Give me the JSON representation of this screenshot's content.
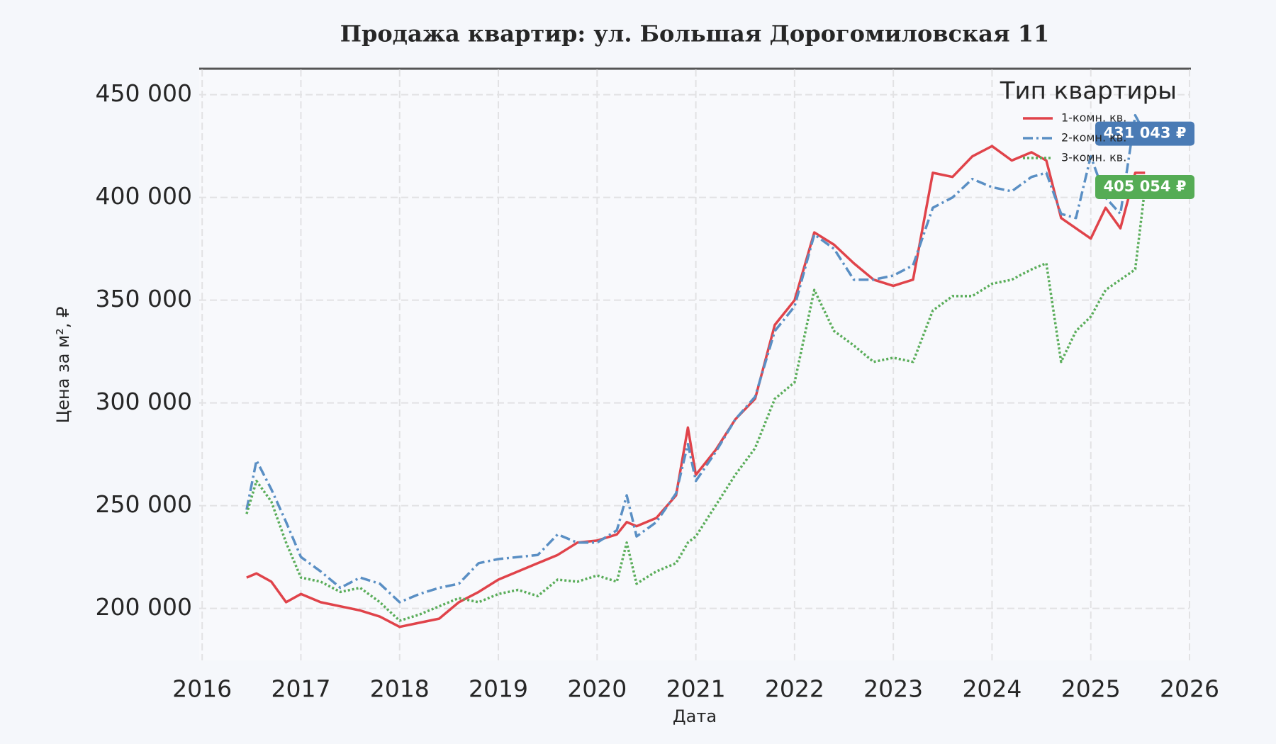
{
  "chart_data": {
    "type": "line",
    "title": "Продажа квартир: ул. Большая Дорогомиловская 11",
    "x_label": "Дата",
    "y_label": "Цена за м², ₽",
    "legend_title": "Тип квартиры",
    "legend": "upper right",
    "grid": true,
    "x": [
      2016.45,
      2016.55,
      2016.7,
      2016.85,
      2017.0,
      2017.2,
      2017.4,
      2017.6,
      2017.8,
      2018.0,
      2018.2,
      2018.4,
      2018.6,
      2018.8,
      2019.0,
      2019.2,
      2019.4,
      2019.6,
      2019.8,
      2020.0,
      2020.2,
      2020.3,
      2020.4,
      2020.6,
      2020.8,
      2020.92,
      2021.0,
      2021.2,
      2021.4,
      2021.6,
      2021.8,
      2022.0,
      2022.2,
      2022.4,
      2022.6,
      2022.8,
      2023.0,
      2023.2,
      2023.4,
      2023.6,
      2023.8,
      2024.0,
      2024.2,
      2024.4,
      2024.55,
      2024.7,
      2024.85,
      2025.0,
      2025.15,
      2025.3,
      2025.45,
      2025.55
    ],
    "series": [
      {
        "name": "1-комн. кв.",
        "color": "#e0434a",
        "dash": "solid",
        "values": [
          215000,
          217000,
          213000,
          203000,
          207000,
          203000,
          201000,
          199000,
          196000,
          191000,
          193000,
          195000,
          203000,
          208000,
          214000,
          218000,
          222000,
          226000,
          232000,
          233000,
          236000,
          242000,
          240000,
          244000,
          255000,
          288000,
          265000,
          277000,
          292000,
          302000,
          338000,
          350000,
          383000,
          377000,
          368000,
          360000,
          357000,
          360000,
          412000,
          410000,
          420000,
          425000,
          418000,
          422000,
          418000,
          390000,
          385000,
          380000,
          395000,
          385000,
          412000,
          412000
        ]
      },
      {
        "name": "2-комн. кв.",
        "color": "#5a8fc4",
        "dash": "dashdot",
        "values": [
          248000,
          272000,
          258000,
          242000,
          225000,
          218000,
          210000,
          215000,
          212000,
          203000,
          207000,
          210000,
          212000,
          222000,
          224000,
          225000,
          226000,
          236000,
          232000,
          232000,
          238000,
          255000,
          235000,
          242000,
          256000,
          280000,
          262000,
          276000,
          292000,
          303000,
          335000,
          347000,
          382000,
          375000,
          360000,
          360000,
          362000,
          367000,
          395000,
          400000,
          409000,
          405000,
          403000,
          410000,
          412000,
          392000,
          390000,
          420000,
          400000,
          392000,
          440000,
          431043
        ]
      },
      {
        "name": "3-комн. кв.",
        "color": "#5aad5a",
        "dash": "dotted",
        "values": [
          246000,
          262000,
          252000,
          232000,
          215000,
          213000,
          208000,
          210000,
          203000,
          194000,
          197000,
          201000,
          205000,
          203000,
          207000,
          209000,
          206000,
          214000,
          213000,
          216000,
          213000,
          232000,
          212000,
          218000,
          222000,
          232000,
          235000,
          250000,
          265000,
          278000,
          302000,
          310000,
          355000,
          335000,
          328000,
          320000,
          322000,
          320000,
          345000,
          352000,
          352000,
          358000,
          360000,
          365000,
          368000,
          320000,
          335000,
          342000,
          355000,
          360000,
          365000,
          405054
        ]
      }
    ],
    "annotations": [
      {
        "text": "431 043 ₽",
        "value": 431043,
        "color": "#4a7bb5"
      },
      {
        "text": "405 054 ₽",
        "value": 405054,
        "color": "#55ac55"
      }
    ],
    "xlim": [
      2015.97,
      2026.0
    ],
    "xticks": [
      2016,
      2017,
      2018,
      2019,
      2020,
      2021,
      2022,
      2023,
      2024,
      2025,
      2026
    ],
    "ylim": [
      174700,
      462300
    ],
    "yticks": [
      {
        "value": 200000,
        "label": "200 000"
      },
      {
        "value": 250000,
        "label": "250 000"
      },
      {
        "value": 300000,
        "label": "300 000"
      },
      {
        "value": 350000,
        "label": "350 000"
      },
      {
        "value": 400000,
        "label": "400 000"
      },
      {
        "value": 450000,
        "label": "450 000"
      }
    ]
  }
}
